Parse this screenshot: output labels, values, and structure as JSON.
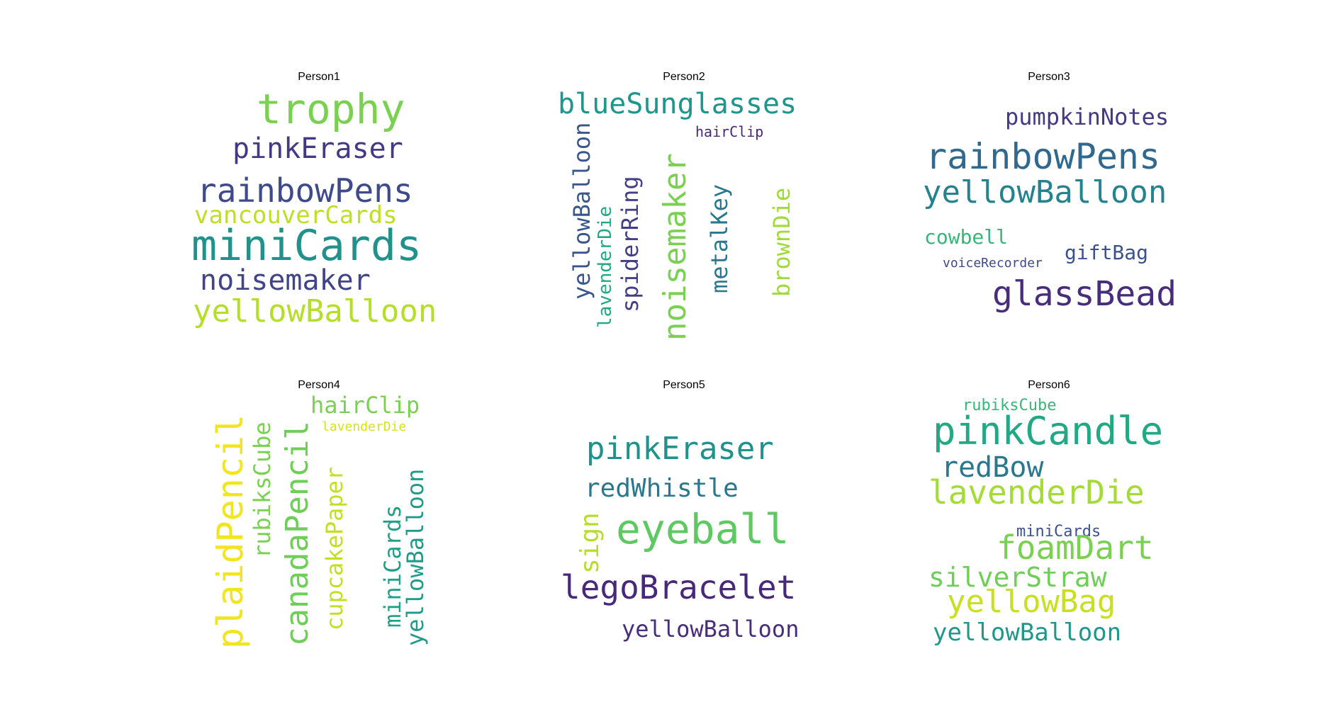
{
  "figure": {
    "panels": [
      {
        "title": "Person1",
        "words": [
          {
            "text": "trophy",
            "color": "#7ad151"
          },
          {
            "text": "pinkEraser",
            "color": "#443983"
          },
          {
            "text": "rainbowPens",
            "color": "#3e4a89"
          },
          {
            "text": "vancouverCards",
            "color": "#bddf26"
          },
          {
            "text": "miniCards",
            "color": "#21918c"
          },
          {
            "text": "noisemaker",
            "color": "#414487"
          },
          {
            "text": "yellowBalloon",
            "color": "#b5de2b"
          }
        ]
      },
      {
        "title": "Person2",
        "words": [
          {
            "text": "blueSunglasses",
            "color": "#1f968b"
          },
          {
            "text": "hairClip",
            "color": "#482878"
          },
          {
            "text": "yellowBalloon",
            "color": "#39568c"
          },
          {
            "text": "lavenderDie",
            "color": "#22a884"
          },
          {
            "text": "spiderRing",
            "color": "#433e85"
          },
          {
            "text": "noisemaker",
            "color": "#7ad151"
          },
          {
            "text": "metalKey",
            "color": "#2a788e"
          },
          {
            "text": "brownDie",
            "color": "#a0da39"
          }
        ]
      },
      {
        "title": "Person3",
        "words": [
          {
            "text": "pumpkinNotes",
            "color": "#443983"
          },
          {
            "text": "rainbowPens",
            "color": "#31688e"
          },
          {
            "text": "yellowBalloon",
            "color": "#26828e"
          },
          {
            "text": "cowbell",
            "color": "#35b779"
          },
          {
            "text": "giftBag",
            "color": "#3b528b"
          },
          {
            "text": "voiceRecorder",
            "color": "#3e4a89"
          },
          {
            "text": "glassBead",
            "color": "#472d7b"
          }
        ]
      },
      {
        "title": "Person4",
        "words": [
          {
            "text": "plaidPencil",
            "color": "#f1e51d"
          },
          {
            "text": "rubiksCube",
            "color": "#7ad151"
          },
          {
            "text": "canadaPencil",
            "color": "#6ece58"
          },
          {
            "text": "hairClip",
            "color": "#7ad151"
          },
          {
            "text": "lavenderDie",
            "color": "#d8e219"
          },
          {
            "text": "cupcakePaper",
            "color": "#c2df23"
          },
          {
            "text": "miniCards",
            "color": "#1fa187"
          },
          {
            "text": "yellowBalloon",
            "color": "#1e9b8a"
          }
        ]
      },
      {
        "title": "Person5",
        "words": [
          {
            "text": "pinkEraser",
            "color": "#21918c"
          },
          {
            "text": "redWhistle",
            "color": "#2a788e"
          },
          {
            "text": "sign",
            "color": "#b5de2b"
          },
          {
            "text": "eyeball",
            "color": "#5ec962"
          },
          {
            "text": "legoBracelet",
            "color": "#482878"
          },
          {
            "text": "yellowBalloon",
            "color": "#472d7b"
          }
        ]
      },
      {
        "title": "Person6",
        "words": [
          {
            "text": "rubiksCube",
            "color": "#35b779"
          },
          {
            "text": "pinkCandle",
            "color": "#22a884"
          },
          {
            "text": "redBow",
            "color": "#2a788e"
          },
          {
            "text": "lavenderDie",
            "color": "#a5db36"
          },
          {
            "text": "miniCards",
            "color": "#3b528b"
          },
          {
            "text": "foamDart",
            "color": "#7ad151"
          },
          {
            "text": "silverStraw",
            "color": "#6ece58"
          },
          {
            "text": "yellowBag",
            "color": "#c8e020"
          },
          {
            "text": "yellowBalloon",
            "color": "#1f988b"
          }
        ]
      }
    ]
  }
}
